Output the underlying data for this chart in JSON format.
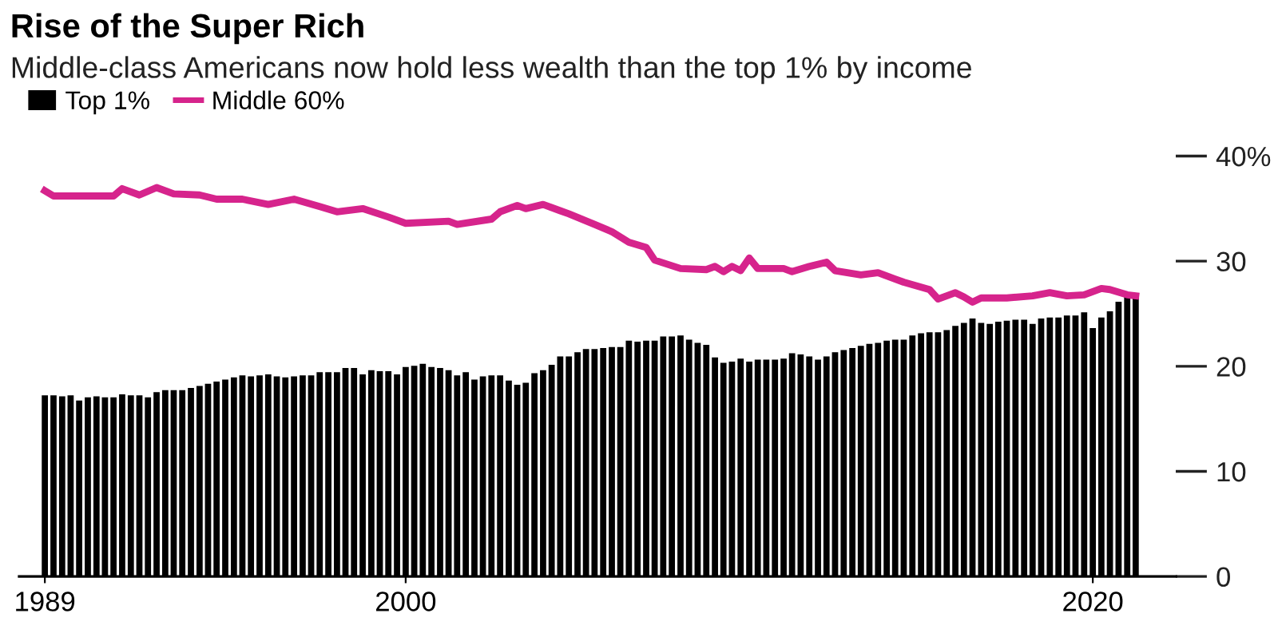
{
  "chart_data": {
    "type": "bar",
    "title": "Rise of the Super Rich",
    "subtitle": "Middle-class Americans now hold less wealth than the top 1% by income",
    "x": [
      "1989-07",
      "1989-10",
      "1990-01",
      "1990-04",
      "1990-07",
      "1990-10",
      "1991-01",
      "1991-04",
      "1991-07",
      "1991-10",
      "1992-01",
      "1992-04",
      "1992-07",
      "1992-10",
      "1993-01",
      "1993-04",
      "1993-07",
      "1993-10",
      "1994-01",
      "1994-04",
      "1994-07",
      "1994-10",
      "1995-01",
      "1995-04",
      "1995-07",
      "1995-10",
      "1996-01",
      "1996-04",
      "1996-07",
      "1996-10",
      "1997-01",
      "1997-04",
      "1997-07",
      "1997-10",
      "1998-01",
      "1998-04",
      "1998-07",
      "1998-10",
      "1999-01",
      "1999-04",
      "1999-07",
      "1999-10",
      "2000-01",
      "2000-04",
      "2000-07",
      "2000-10",
      "2001-01",
      "2001-04",
      "2001-07",
      "2001-10",
      "2002-01",
      "2002-04",
      "2002-07",
      "2002-10",
      "2003-01",
      "2003-04",
      "2003-07",
      "2003-10",
      "2004-01",
      "2004-04",
      "2004-07",
      "2004-10",
      "2005-01",
      "2005-04",
      "2005-07",
      "2005-10",
      "2006-01",
      "2006-04",
      "2006-07",
      "2006-10",
      "2007-01",
      "2007-04",
      "2007-07",
      "2007-10",
      "2008-01",
      "2008-04",
      "2008-07",
      "2008-10",
      "2009-01",
      "2009-04",
      "2009-07",
      "2009-10",
      "2010-01",
      "2010-04",
      "2010-07",
      "2010-10",
      "2011-01",
      "2011-04",
      "2011-07",
      "2011-10",
      "2012-01",
      "2012-04",
      "2012-07",
      "2012-10",
      "2013-01",
      "2013-04",
      "2013-07",
      "2013-10",
      "2014-01",
      "2014-04",
      "2014-07",
      "2014-10",
      "2015-01",
      "2015-04",
      "2015-07",
      "2015-10",
      "2016-01",
      "2016-04",
      "2016-07",
      "2016-10",
      "2017-01",
      "2017-04",
      "2017-07",
      "2017-10",
      "2018-01",
      "2018-04",
      "2018-07",
      "2018-10",
      "2019-01",
      "2019-04",
      "2019-07",
      "2019-10",
      "2020-01",
      "2020-04",
      "2020-07",
      "2020-10",
      "2021-01",
      "2021-04"
    ],
    "series": [
      {
        "name": "Top 1%",
        "color": "#000000",
        "values": [
          17.3,
          17.3,
          17.2,
          17.3,
          16.8,
          17.1,
          17.2,
          17.1,
          17.1,
          17.4,
          17.3,
          17.3,
          17.1,
          17.6,
          17.8,
          17.8,
          17.8,
          18.0,
          18.2,
          18.4,
          18.6,
          18.8,
          19.0,
          19.2,
          19.1,
          19.2,
          19.3,
          19.1,
          19.0,
          19.1,
          19.2,
          19.2,
          19.5,
          19.5,
          19.5,
          19.9,
          19.9,
          19.3,
          19.7,
          19.6,
          19.6,
          19.3,
          20.0,
          20.1,
          20.3,
          20.0,
          19.9,
          19.7,
          19.2,
          19.5,
          18.8,
          19.1,
          19.2,
          19.2,
          18.7,
          18.3,
          18.5,
          19.4,
          19.7,
          20.2,
          21.0,
          21.0,
          21.4,
          21.7,
          21.7,
          21.8,
          21.9,
          21.9,
          22.5,
          22.4,
          22.5,
          22.5,
          22.9,
          22.9,
          23.0,
          22.6,
          22.3,
          22.1,
          20.9,
          20.4,
          20.5,
          20.8,
          20.5,
          20.7,
          20.7,
          20.7,
          20.8,
          21.3,
          21.2,
          21.0,
          20.7,
          21.0,
          21.4,
          21.6,
          21.8,
          22.0,
          22.2,
          22.3,
          22.5,
          22.6,
          22.6,
          23.0,
          23.2,
          23.3,
          23.3,
          23.5,
          23.9,
          24.2,
          24.6,
          24.2,
          24.1,
          24.3,
          24.4,
          24.5,
          24.5,
          24.1,
          24.6,
          24.7,
          24.7,
          24.9,
          24.9,
          25.2,
          23.7,
          24.7,
          25.3,
          26.2,
          26.8,
          26.9
        ]
      },
      {
        "name": "Middle 60%",
        "type": "line",
        "color": "#d6248c",
        "x": [
          "1989-07",
          "1989-10",
          "1991-07",
          "1991-10",
          "1992-04",
          "1992-10",
          "1993-04",
          "1994-01",
          "1994-07",
          "1995-04",
          "1996-01",
          "1996-10",
          "1997-07",
          "1998-01",
          "1998-10",
          "1999-07",
          "2000-01",
          "2001-04",
          "2001-07",
          "2002-07",
          "2002-10",
          "2003-04",
          "2003-07",
          "2004-01",
          "2004-07",
          "2004-10",
          "2005-07",
          "2006-01",
          "2006-07",
          "2007-01",
          "2007-04",
          "2008-01",
          "2008-10",
          "2009-01",
          "2009-04",
          "2009-07",
          "2009-10",
          "2010-01",
          "2010-04",
          "2011-01",
          "2011-04",
          "2011-10",
          "2012-04",
          "2012-07",
          "2013-04",
          "2013-10",
          "2014-04",
          "2014-07",
          "2015-04",
          "2015-07",
          "2016-01",
          "2016-04",
          "2016-07",
          "2016-10",
          "2017-07",
          "2018-04",
          "2018-10",
          "2019-04",
          "2019-10",
          "2020-04",
          "2020-07",
          "2021-01",
          "2021-04"
        ],
        "values": [
          36.7,
          36.2,
          36.2,
          36.9,
          36.3,
          37.0,
          36.4,
          36.3,
          35.9,
          35.9,
          35.4,
          35.9,
          35.2,
          34.7,
          35.0,
          34.2,
          33.6,
          33.8,
          33.5,
          34.0,
          34.7,
          35.3,
          35.0,
          35.4,
          34.8,
          34.5,
          33.5,
          32.8,
          31.8,
          31.3,
          30.1,
          29.3,
          29.2,
          29.5,
          29.0,
          29.5,
          29.1,
          30.3,
          29.3,
          29.3,
          29.0,
          29.5,
          29.9,
          29.1,
          28.7,
          28.9,
          28.3,
          28.0,
          27.3,
          26.4,
          27.0,
          26.6,
          26.1,
          26.5,
          26.5,
          26.7,
          27.0,
          26.7,
          26.8,
          27.4,
          27.3,
          26.8,
          26.7
        ]
      }
    ],
    "xlim": [
      "1988-10",
      "2022-06"
    ],
    "xticks": [
      {
        "value": "1989-07",
        "label": "1989"
      },
      {
        "value": "2000-01",
        "label": "2000"
      },
      {
        "value": "2020-01",
        "label": "2020"
      }
    ],
    "ylim": [
      0,
      40
    ],
    "yticks": [
      0,
      10,
      20,
      30,
      {
        "value": 40,
        "label": "40%"
      }
    ],
    "grid": false,
    "legend": "top left",
    "marker": "none",
    "line_style": "solid"
  }
}
